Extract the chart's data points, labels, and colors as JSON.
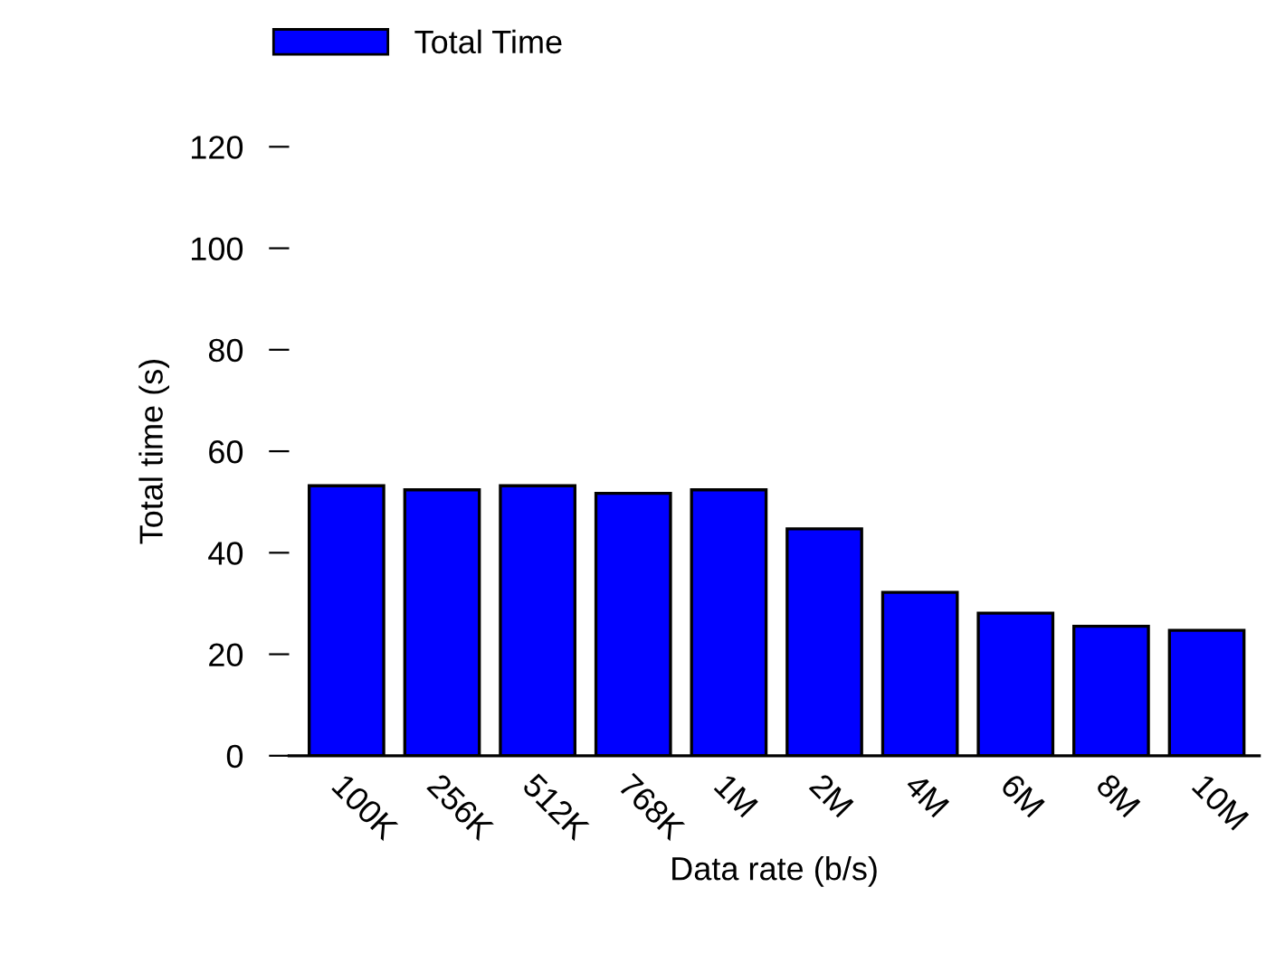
{
  "chart_data": {
    "type": "bar",
    "xlabel": "Data rate (b/s)",
    "ylabel": "Total time (s)",
    "categories": [
      "100K",
      "256K",
      "512K",
      "768K",
      "1M",
      "2M",
      "4M",
      "6M",
      "8M",
      "10M"
    ],
    "series": [
      {
        "name": "Total Time",
        "color": "#0000ff",
        "values": [
          53.2,
          52.4,
          53.2,
          51.7,
          52.4,
          44.7,
          32.2,
          28.1,
          25.5,
          24.7
        ]
      }
    ],
    "ylim": [
      0,
      120
    ],
    "yticks": [
      0,
      20,
      40,
      60,
      80,
      100,
      120
    ],
    "grid": false,
    "legend": "top left"
  }
}
